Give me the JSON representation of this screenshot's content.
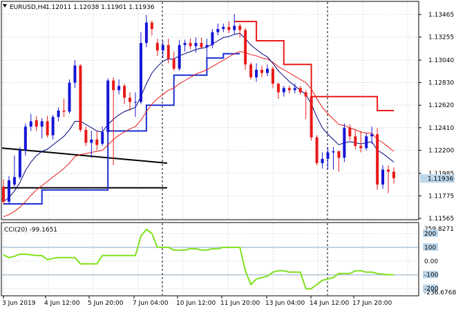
{
  "header": {
    "symbol_text": "EURUSD,H4",
    "ohlc_text": "1.12011 1.12038 1.11901 1.11936",
    "dropdown_icon": "triangle-down-icon"
  },
  "cci_header": {
    "text": "CCI(20) -99.1651"
  },
  "colors": {
    "bull": "#1515d6",
    "bear": "#e81919",
    "ma_fast": "#000080",
    "ma_slow": "#e81919",
    "sar_low": "#1a2fcf",
    "sar_high": "#e81919",
    "trendline": "#000000",
    "cci": "#7fe01c",
    "grid": "#a8c0d0",
    "price_tag_bg": "#bcd6ea"
  },
  "price_axis": {
    "labels": [
      "1.13465",
      "1.13255",
      "1.13040",
      "1.12830",
      "1.12620",
      "1.12410",
      "1.12200",
      "1.11985",
      "1.11775",
      "1.11565"
    ],
    "current_price": "1.11936"
  },
  "cci_axis": {
    "labels": [
      "259.8271",
      "200",
      "100",
      "0.00",
      "-100",
      "-200",
      "-236.6768"
    ]
  },
  "time_axis": {
    "labels": [
      "3 Jun 2019",
      "4 Jun 12:00",
      "5 Jun 20:00",
      "7 Jun 04:00",
      "10 Jun 12:00",
      "11 Jun 20:00",
      "13 Jun 04:00",
      "14 Jun 12:00",
      "17 Jun 20:00"
    ]
  },
  "chart_data": {
    "type": "candlestick",
    "symbol": "EURUSD",
    "timeframe": "H4",
    "ylim": [
      1.11565,
      1.13465
    ],
    "candles": [
      {
        "o": 1.1186,
        "h": 1.1193,
        "l": 1.1169,
        "c": 1.1172
      },
      {
        "o": 1.1172,
        "h": 1.1196,
        "l": 1.117,
        "c": 1.1192
      },
      {
        "o": 1.1188,
        "h": 1.1215,
        "l": 1.1186,
        "c": 1.1195
      },
      {
        "o": 1.1195,
        "h": 1.1223,
        "l": 1.1193,
        "c": 1.122
      },
      {
        "o": 1.122,
        "h": 1.1245,
        "l": 1.1215,
        "c": 1.1242
      },
      {
        "o": 1.1242,
        "h": 1.1254,
        "l": 1.1238,
        "c": 1.1247
      },
      {
        "o": 1.1248,
        "h": 1.1252,
        "l": 1.1238,
        "c": 1.1242
      },
      {
        "o": 1.1242,
        "h": 1.125,
        "l": 1.1231,
        "c": 1.1247
      },
      {
        "o": 1.1247,
        "h": 1.1252,
        "l": 1.1232,
        "c": 1.1234
      },
      {
        "o": 1.1234,
        "h": 1.1253,
        "l": 1.123,
        "c": 1.1251
      },
      {
        "o": 1.1251,
        "h": 1.126,
        "l": 1.1247,
        "c": 1.1257
      },
      {
        "o": 1.1257,
        "h": 1.1268,
        "l": 1.1251,
        "c": 1.1256
      },
      {
        "o": 1.1256,
        "h": 1.1286,
        "l": 1.1254,
        "c": 1.1283
      },
      {
        "o": 1.1283,
        "h": 1.1304,
        "l": 1.1278,
        "c": 1.1299
      },
      {
        "o": 1.1299,
        "h": 1.13,
        "l": 1.1237,
        "c": 1.1239
      },
      {
        "o": 1.1239,
        "h": 1.1242,
        "l": 1.1224,
        "c": 1.1227
      },
      {
        "o": 1.1227,
        "h": 1.1238,
        "l": 1.1213,
        "c": 1.123
      },
      {
        "o": 1.123,
        "h": 1.1238,
        "l": 1.122,
        "c": 1.1225
      },
      {
        "o": 1.1226,
        "h": 1.1242,
        "l": 1.1224,
        "c": 1.1237
      },
      {
        "o": 1.1237,
        "h": 1.1287,
        "l": 1.1233,
        "c": 1.1285
      },
      {
        "o": 1.1285,
        "h": 1.1288,
        "l": 1.1206,
        "c": 1.1276
      },
      {
        "o": 1.1276,
        "h": 1.1286,
        "l": 1.1272,
        "c": 1.128
      },
      {
        "o": 1.128,
        "h": 1.1282,
        "l": 1.1263,
        "c": 1.1269
      },
      {
        "o": 1.1269,
        "h": 1.1274,
        "l": 1.1257,
        "c": 1.1265
      },
      {
        "o": 1.1265,
        "h": 1.1274,
        "l": 1.1251,
        "c": 1.1265
      },
      {
        "o": 1.1265,
        "h": 1.133,
        "l": 1.1263,
        "c": 1.132
      },
      {
        "o": 1.132,
        "h": 1.1346,
        "l": 1.1316,
        "c": 1.1339
      },
      {
        "o": 1.1339,
        "h": 1.1341,
        "l": 1.1327,
        "c": 1.1333
      },
      {
        "o": 1.132,
        "h": 1.1324,
        "l": 1.1308,
        "c": 1.1313
      },
      {
        "o": 1.1313,
        "h": 1.1322,
        "l": 1.1306,
        "c": 1.1318
      },
      {
        "o": 1.1318,
        "h": 1.1324,
        "l": 1.1301,
        "c": 1.1305
      },
      {
        "o": 1.1305,
        "h": 1.1312,
        "l": 1.1294,
        "c": 1.1296
      },
      {
        "o": 1.1296,
        "h": 1.1323,
        "l": 1.1294,
        "c": 1.1318
      },
      {
        "o": 1.1318,
        "h": 1.1323,
        "l": 1.1312,
        "c": 1.132
      },
      {
        "o": 1.132,
        "h": 1.1324,
        "l": 1.1314,
        "c": 1.1317
      },
      {
        "o": 1.1317,
        "h": 1.1325,
        "l": 1.1311,
        "c": 1.132
      },
      {
        "o": 1.132,
        "h": 1.1325,
        "l": 1.1315,
        "c": 1.1316
      },
      {
        "o": 1.1316,
        "h": 1.1324,
        "l": 1.1305,
        "c": 1.1318
      },
      {
        "o": 1.1318,
        "h": 1.1333,
        "l": 1.1315,
        "c": 1.133
      },
      {
        "o": 1.133,
        "h": 1.1338,
        "l": 1.1327,
        "c": 1.1333
      },
      {
        "o": 1.1333,
        "h": 1.1338,
        "l": 1.133,
        "c": 1.1335
      },
      {
        "o": 1.1335,
        "h": 1.134,
        "l": 1.1329,
        "c": 1.1332
      },
      {
        "o": 1.1332,
        "h": 1.1347,
        "l": 1.1328,
        "c": 1.1336
      },
      {
        "o": 1.1336,
        "h": 1.1338,
        "l": 1.1325,
        "c": 1.1332
      },
      {
        "o": 1.1332,
        "h": 1.1334,
        "l": 1.1295,
        "c": 1.13
      },
      {
        "o": 1.13,
        "h": 1.1302,
        "l": 1.1286,
        "c": 1.1288
      },
      {
        "o": 1.1288,
        "h": 1.1301,
        "l": 1.1284,
        "c": 1.1295
      },
      {
        "o": 1.1295,
        "h": 1.1299,
        "l": 1.1288,
        "c": 1.1292
      },
      {
        "o": 1.1292,
        "h": 1.13,
        "l": 1.1289,
        "c": 1.1296
      },
      {
        "o": 1.1296,
        "h": 1.1298,
        "l": 1.1278,
        "c": 1.1282
      },
      {
        "o": 1.1282,
        "h": 1.1283,
        "l": 1.1268,
        "c": 1.1274
      },
      {
        "o": 1.1274,
        "h": 1.128,
        "l": 1.127,
        "c": 1.1278
      },
      {
        "o": 1.1278,
        "h": 1.128,
        "l": 1.1273,
        "c": 1.1276
      },
      {
        "o": 1.1276,
        "h": 1.1282,
        "l": 1.1273,
        "c": 1.1278
      },
      {
        "o": 1.1278,
        "h": 1.128,
        "l": 1.1272,
        "c": 1.1274
      },
      {
        "o": 1.1274,
        "h": 1.1276,
        "l": 1.1249,
        "c": 1.127
      },
      {
        "o": 1.127,
        "h": 1.1272,
        "l": 1.1229,
        "c": 1.1232
      },
      {
        "o": 1.1232,
        "h": 1.1234,
        "l": 1.1206,
        "c": 1.1208
      },
      {
        "o": 1.1208,
        "h": 1.1218,
        "l": 1.1203,
        "c": 1.1212
      },
      {
        "o": 1.1212,
        "h": 1.1223,
        "l": 1.1202,
        "c": 1.1218
      },
      {
        "o": 1.1218,
        "h": 1.1223,
        "l": 1.1202,
        "c": 1.1219
      },
      {
        "o": 1.1219,
        "h": 1.122,
        "l": 1.12,
        "c": 1.1213
      },
      {
        "o": 1.1213,
        "h": 1.1245,
        "l": 1.1209,
        "c": 1.1241
      },
      {
        "o": 1.1241,
        "h": 1.1244,
        "l": 1.1229,
        "c": 1.1233
      },
      {
        "o": 1.1233,
        "h": 1.1239,
        "l": 1.1221,
        "c": 1.1224
      },
      {
        "o": 1.1224,
        "h": 1.1238,
        "l": 1.1218,
        "c": 1.1222
      },
      {
        "o": 1.1222,
        "h": 1.1236,
        "l": 1.122,
        "c": 1.1233
      },
      {
        "o": 1.1233,
        "h": 1.1242,
        "l": 1.1226,
        "c": 1.1235
      },
      {
        "o": 1.1235,
        "h": 1.1241,
        "l": 1.1183,
        "c": 1.1188
      },
      {
        "o": 1.1188,
        "h": 1.1206,
        "l": 1.1184,
        "c": 1.1202
      },
      {
        "o": 1.1202,
        "h": 1.1206,
        "l": 1.118,
        "c": 1.12
      },
      {
        "o": 1.12,
        "h": 1.1204,
        "l": 1.1189,
        "c": 1.1194
      }
    ],
    "ma_fast": [
      1.1172,
      1.1176,
      1.1182,
      1.119,
      1.1201,
      1.1209,
      1.1215,
      1.1219,
      1.1221,
      1.1225,
      1.1229,
      1.1233,
      1.1239,
      1.1247,
      1.1247,
      1.1244,
      1.1241,
      1.1238,
      1.1237,
      1.1244,
      1.1249,
      1.1253,
      1.1256,
      1.1258,
      1.126,
      1.127,
      1.1282,
      1.1292,
      1.1298,
      1.1303,
      1.1305,
      1.1305,
      1.1308,
      1.131,
      1.1312,
      1.1314,
      1.1315,
      1.1316,
      1.1319,
      1.1322,
      1.1325,
      1.1326,
      1.1328,
      1.1329,
      1.1324,
      1.1318,
      1.1314,
      1.131,
      1.1307,
      1.1301,
      1.1294,
      1.1289,
      1.1284,
      1.128,
      1.1276,
      1.1272,
      1.1263,
      1.1251,
      1.1241,
      1.1235,
      1.123,
      1.1225,
      1.1227,
      1.1228,
      1.1227,
      1.1226,
      1.1227,
      1.1228,
      1.122,
      1.1217,
      1.1213,
      1.1209
    ],
    "ma_slow": [
      1.1158,
      1.116,
      1.1163,
      1.1167,
      1.1172,
      1.1178,
      1.1183,
      1.1187,
      1.1191,
      1.1195,
      1.1199,
      1.1203,
      1.1208,
      1.1214,
      1.1216,
      1.1217,
      1.1218,
      1.1219,
      1.122,
      1.1225,
      1.123,
      1.1234,
      1.1237,
      1.124,
      1.1242,
      1.1248,
      1.1256,
      1.1263,
      1.1268,
      1.1272,
      1.1276,
      1.1278,
      1.1282,
      1.1285,
      1.1288,
      1.1291,
      1.1293,
      1.1295,
      1.1298,
      1.1301,
      1.1304,
      1.1307,
      1.131,
      1.1312,
      1.1311,
      1.1309,
      1.1308,
      1.1306,
      1.1305,
      1.1302,
      1.1298,
      1.1295,
      1.1292,
      1.1289,
      1.1286,
      1.1283,
      1.1277,
      1.1268,
      1.126,
      1.1254,
      1.1249,
      1.1244,
      1.1243,
      1.1241,
      1.1239,
      1.1237,
      1.1236,
      1.1236,
      1.123,
      1.1227,
      1.1223,
      1.1219
    ],
    "sar_support": [
      {
        "from": 0,
        "to": 7,
        "price": 1.117
      },
      {
        "from": 7,
        "to": 19,
        "price": 1.1183
      },
      {
        "from": 19,
        "to": 26,
        "price": 1.1238
      },
      {
        "from": 26,
        "to": 31,
        "price": 1.1262
      },
      {
        "from": 31,
        "to": 37,
        "price": 1.129
      },
      {
        "from": 37,
        "to": 40,
        "price": 1.1306
      },
      {
        "from": 40,
        "to": 43,
        "price": 1.131
      }
    ],
    "sar_resistance": [
      {
        "from": 42,
        "to": 46,
        "price": 1.134
      },
      {
        "from": 46,
        "to": 51,
        "price": 1.1322
      },
      {
        "from": 51,
        "to": 56,
        "price": 1.13
      },
      {
        "from": 56,
        "to": 63,
        "price": 1.127
      },
      {
        "from": 63,
        "to": 68,
        "price": 1.127
      },
      {
        "from": 68,
        "to": 71,
        "price": 1.1257
      }
    ],
    "trendlines": [
      {
        "from": 0,
        "from_price": 1.1222,
        "to": 26,
        "to_price": 1.1208
      },
      {
        "from": 0,
        "from_price": 1.1185,
        "to": 26,
        "to_price": 1.1185
      }
    ],
    "cci": [
      45,
      25,
      35,
      50,
      50,
      45,
      40,
      40,
      10,
      20,
      25,
      25,
      25,
      25,
      -20,
      -20,
      -20,
      -20,
      40,
      40,
      40,
      40,
      40,
      40,
      40,
      180,
      230,
      200,
      100,
      100,
      100,
      80,
      80,
      80,
      90,
      90,
      80,
      80,
      90,
      90,
      100,
      100,
      100,
      100,
      -70,
      -170,
      -130,
      -120,
      -110,
      -80,
      -70,
      -70,
      -80,
      -80,
      -80,
      -200,
      -200,
      -170,
      -140,
      -130,
      -120,
      -90,
      -90,
      -90,
      -70,
      -70,
      -80,
      -80,
      -90,
      -95,
      -99,
      -99
    ],
    "cci_ylim": [
      -236.6768,
      259.8271
    ],
    "cci_levels": [
      100,
      -100
    ]
  }
}
